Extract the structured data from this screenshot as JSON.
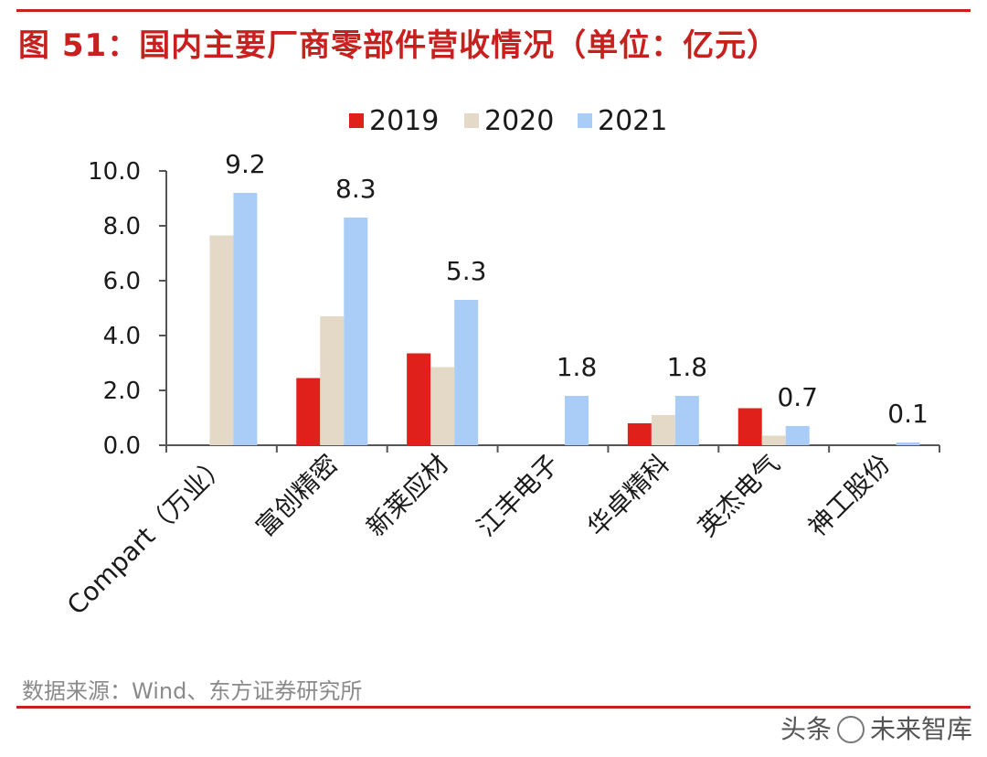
{
  "title": "图 51：国内主要厂商零部件营收情况（单位：亿元）",
  "source": "数据来源：Wind、东方证券研究所",
  "watermark": {
    "prefix": "头条",
    "handle": "未来智库"
  },
  "colors": {
    "accent": "#c8201f",
    "axis": "#555555"
  },
  "chart_data": {
    "type": "bar",
    "title": "国内主要厂商零部件营收情况（单位：亿元）",
    "xlabel": "",
    "ylabel": "",
    "ylim": [
      0,
      10
    ],
    "yticks": [
      "0.0",
      "2.0",
      "4.0",
      "6.0",
      "8.0",
      "10.0"
    ],
    "legend_position": "top-center",
    "categories": [
      "Compart（万业）",
      "富创精密",
      "新莱应材",
      "江丰电子",
      "华卓精科",
      "英杰电气",
      "神工股份"
    ],
    "series": [
      {
        "name": "2019",
        "color": "#e0201b",
        "values": [
          null,
          2.45,
          3.35,
          null,
          0.8,
          1.35,
          null
        ]
      },
      {
        "name": "2020",
        "color": "#e3d9c6",
        "values": [
          7.65,
          4.7,
          2.85,
          null,
          1.1,
          0.35,
          null
        ]
      },
      {
        "name": "2021",
        "color": "#a9cdf6",
        "values": [
          9.2,
          8.3,
          5.3,
          1.8,
          1.8,
          0.7,
          0.1
        ]
      }
    ],
    "data_labels": {
      "series": "2021",
      "values": [
        "9.2",
        "8.3",
        "5.3",
        "1.8",
        "1.8",
        "0.7",
        "0.1"
      ]
    }
  }
}
